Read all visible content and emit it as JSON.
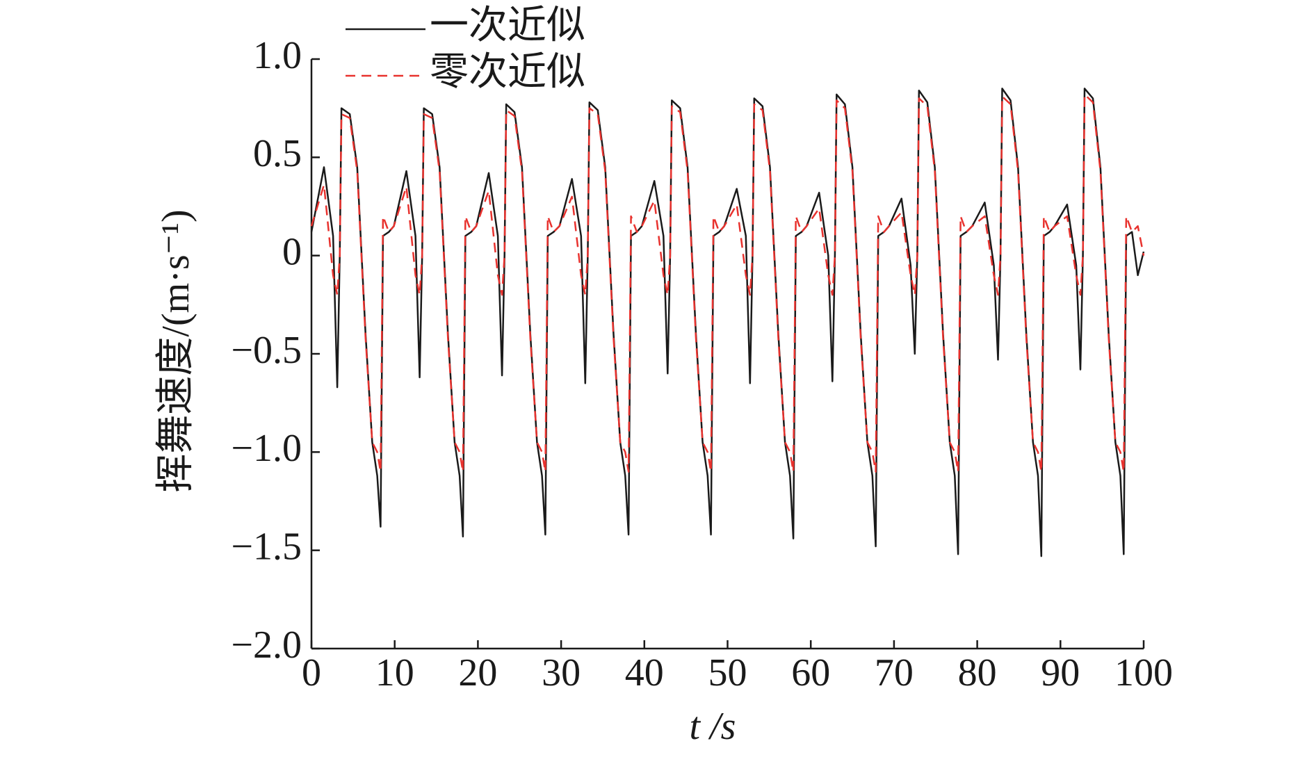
{
  "chart_data": {
    "type": "line",
    "xlabel": "t /s",
    "ylabel": "挥舞速度/(m·s⁻¹)",
    "x": [
      0,
      1.5,
      2.6,
      3.1,
      3.4,
      3.6,
      4.6,
      5.5,
      6.5,
      7.3,
      7.9,
      8.3,
      8.6,
      9.3,
      9.9,
      11.4,
      12.5,
      13,
      13.3,
      13.5,
      14.5,
      15.4,
      16.4,
      17.2,
      17.8,
      18.2,
      18.5,
      19.2,
      19.8,
      21.3,
      22.4,
      22.9,
      23.2,
      23.4,
      24.4,
      25.3,
      26.3,
      27.1,
      27.7,
      28.1,
      28.4,
      29.1,
      29.8,
      31.3,
      32.4,
      32.9,
      33.2,
      33.4,
      34.4,
      35.3,
      36.3,
      37.1,
      37.7,
      38.1,
      38.4,
      39.1,
      39.7,
      41.2,
      42.3,
      42.8,
      43.1,
      43.3,
      44.3,
      45.2,
      46.2,
      47,
      47.6,
      48,
      48.3,
      49,
      49.6,
      51.1,
      52.2,
      52.7,
      53,
      53.2,
      54.2,
      55.1,
      56.1,
      56.9,
      57.5,
      57.9,
      58.2,
      58.9,
      59.5,
      61,
      62.1,
      62.6,
      62.9,
      63.1,
      64.1,
      65,
      66,
      66.8,
      67.4,
      67.8,
      68.1,
      68.8,
      69.4,
      70.9,
      72,
      72.5,
      72.8,
      73,
      74,
      74.9,
      75.9,
      76.7,
      77.3,
      77.7,
      78,
      78.7,
      79.4,
      80.9,
      82,
      82.5,
      82.8,
      83,
      84,
      84.9,
      85.9,
      86.7,
      87.3,
      87.7,
      88,
      88.7,
      89.3,
      90.8,
      91.9,
      92.4,
      92.7,
      92.9,
      93.9,
      94.8,
      95.8,
      96.6,
      97.2,
      97.6,
      97.9,
      98.6,
      99.3,
      100
    ],
    "series": [
      {
        "name": "一次近似",
        "color": "#1a1a1a",
        "dash": "solid",
        "values": [
          0.12,
          0.45,
          0.1,
          -0.67,
          0.0,
          0.75,
          0.72,
          0.45,
          -0.4,
          -0.95,
          -1.12,
          -1.38,
          0.1,
          0.12,
          0.15,
          0.43,
          0.1,
          -0.62,
          0.0,
          0.75,
          0.72,
          0.45,
          -0.4,
          -0.95,
          -1.12,
          -1.43,
          0.1,
          0.12,
          0.15,
          0.42,
          0.1,
          -0.61,
          0.0,
          0.77,
          0.73,
          0.45,
          -0.4,
          -0.95,
          -1.12,
          -1.42,
          0.1,
          0.12,
          0.15,
          0.39,
          0.1,
          -0.65,
          0.0,
          0.78,
          0.74,
          0.45,
          -0.4,
          -0.95,
          -1.12,
          -1.42,
          0.1,
          0.12,
          0.15,
          0.38,
          0.1,
          -0.6,
          0.0,
          0.79,
          0.75,
          0.45,
          -0.4,
          -0.95,
          -1.12,
          -1.42,
          0.1,
          0.12,
          0.15,
          0.34,
          0.1,
          -0.65,
          0.0,
          0.8,
          0.76,
          0.45,
          -0.4,
          -0.95,
          -1.12,
          -1.44,
          0.1,
          0.12,
          0.15,
          0.32,
          0.0,
          -0.64,
          0.0,
          0.82,
          0.77,
          0.45,
          -0.4,
          -0.95,
          -1.12,
          -1.48,
          0.1,
          0.12,
          0.15,
          0.29,
          -0.05,
          -0.5,
          0.0,
          0.84,
          0.78,
          0.45,
          -0.4,
          -0.95,
          -1.12,
          -1.52,
          0.1,
          0.12,
          0.15,
          0.27,
          -0.05,
          -0.53,
          0.0,
          0.85,
          0.79,
          0.45,
          -0.4,
          -0.95,
          -1.12,
          -1.53,
          0.1,
          0.12,
          0.15,
          0.26,
          -0.05,
          -0.58,
          0.0,
          0.85,
          0.8,
          0.45,
          -0.4,
          -0.95,
          -1.12,
          -1.52,
          0.1,
          0.12,
          -0.1,
          0.02
        ]
      },
      {
        "name": "零次近似",
        "color": "#e8322e",
        "dash": "dashed",
        "values": [
          0.15,
          0.36,
          -0.1,
          -0.2,
          0.0,
          0.72,
          0.7,
          0.43,
          -0.42,
          -0.95,
          -1.0,
          -1.1,
          0.2,
          0.12,
          0.15,
          0.35,
          -0.1,
          -0.2,
          0.0,
          0.72,
          0.7,
          0.43,
          -0.42,
          -0.95,
          -1.0,
          -1.1,
          0.2,
          0.12,
          0.15,
          0.33,
          -0.1,
          -0.2,
          0.0,
          0.74,
          0.71,
          0.43,
          -0.42,
          -0.95,
          -1.0,
          -1.1,
          0.2,
          0.12,
          0.15,
          0.3,
          -0.1,
          -0.2,
          0.0,
          0.75,
          0.72,
          0.43,
          -0.42,
          -0.95,
          -1.0,
          -1.1,
          0.2,
          0.12,
          0.15,
          0.28,
          -0.1,
          -0.2,
          0.0,
          0.76,
          0.73,
          0.43,
          -0.42,
          -0.95,
          -1.0,
          -1.1,
          0.2,
          0.12,
          0.15,
          0.26,
          -0.1,
          -0.2,
          0.0,
          0.77,
          0.74,
          0.43,
          -0.42,
          -0.95,
          -1.0,
          -1.1,
          0.2,
          0.12,
          0.15,
          0.24,
          -0.1,
          -0.2,
          0.0,
          0.79,
          0.75,
          0.43,
          -0.42,
          -0.95,
          -1.0,
          -1.1,
          0.2,
          0.12,
          0.15,
          0.22,
          -0.1,
          -0.2,
          0.0,
          0.8,
          0.76,
          0.43,
          -0.42,
          -0.95,
          -1.0,
          -1.1,
          0.2,
          0.12,
          0.15,
          0.2,
          -0.1,
          -0.2,
          0.0,
          0.81,
          0.77,
          0.43,
          -0.42,
          -0.95,
          -1.0,
          -1.1,
          0.2,
          0.12,
          0.15,
          0.2,
          -0.1,
          -0.2,
          0.0,
          0.82,
          0.78,
          0.43,
          -0.42,
          -0.95,
          -1.0,
          -1.1,
          0.2,
          0.12,
          0.15,
          0.0
        ]
      }
    ],
    "xlim": [
      0,
      100
    ],
    "xticks": [
      0,
      10,
      20,
      30,
      40,
      50,
      60,
      70,
      80,
      90,
      100
    ],
    "ylim": [
      -2.0,
      1.0
    ],
    "yticks": [
      {
        "value": -2.0,
        "label": "−2.0"
      },
      {
        "value": -1.5,
        "label": "−1.5"
      },
      {
        "value": -1.0,
        "label": "−1.0"
      },
      {
        "value": -0.5,
        "label": "−0.5"
      },
      0,
      0.5,
      {
        "value": 1.0,
        "label": "1.0"
      }
    ],
    "grid": false,
    "legend": "top-left"
  }
}
